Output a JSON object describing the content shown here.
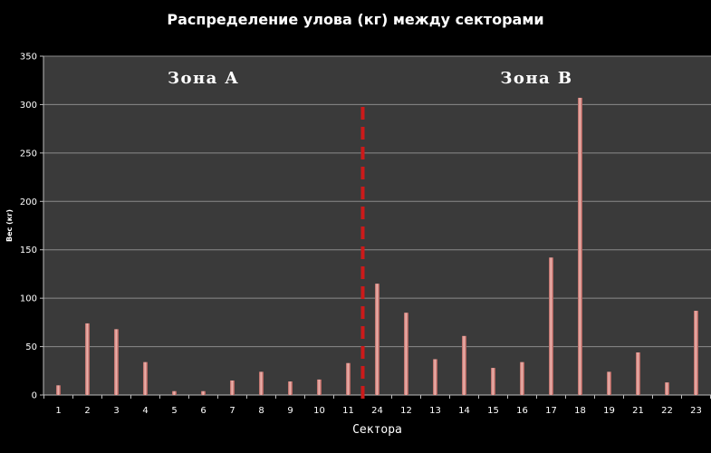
{
  "chart_data": {
    "type": "bar",
    "title": "Распределение улова (кг)  между секторами",
    "xlabel": "Сектора",
    "ylabel": "Вес (кг)",
    "ylim": [
      0,
      350
    ],
    "yticks": [
      0,
      50,
      100,
      150,
      200,
      250,
      300,
      350
    ],
    "grid": true,
    "categories": [
      "1",
      "2",
      "3",
      "4",
      "5",
      "6",
      "7",
      "8",
      "9",
      "10",
      "11",
      "24",
      "12",
      "13",
      "14",
      "15",
      "16",
      "17",
      "18",
      "19",
      "21",
      "22",
      "23"
    ],
    "values": [
      10,
      74,
      68,
      34,
      4,
      4,
      15,
      24,
      14,
      16,
      33,
      115,
      85,
      37,
      61,
      28,
      34,
      142,
      307,
      24,
      44,
      13,
      87
    ],
    "annotations": [
      {
        "text": "Зона A",
        "zone_categories": [
          "1",
          "2",
          "3",
          "4",
          "5",
          "6",
          "7",
          "8",
          "9",
          "10",
          "11"
        ]
      },
      {
        "text": "Зона B",
        "zone_categories": [
          "24",
          "12",
          "13",
          "14",
          "15",
          "16",
          "17",
          "18",
          "19",
          "21",
          "22",
          "23"
        ]
      }
    ],
    "divider": {
      "after_category": "11",
      "style": "dashed",
      "color": "#cc1a1a"
    },
    "colors": {
      "background": "#000000",
      "plot_area": "#3a3a3a",
      "bar": "#e59a95",
      "grid": "#8a8a8a",
      "text": "#ffffff"
    }
  }
}
